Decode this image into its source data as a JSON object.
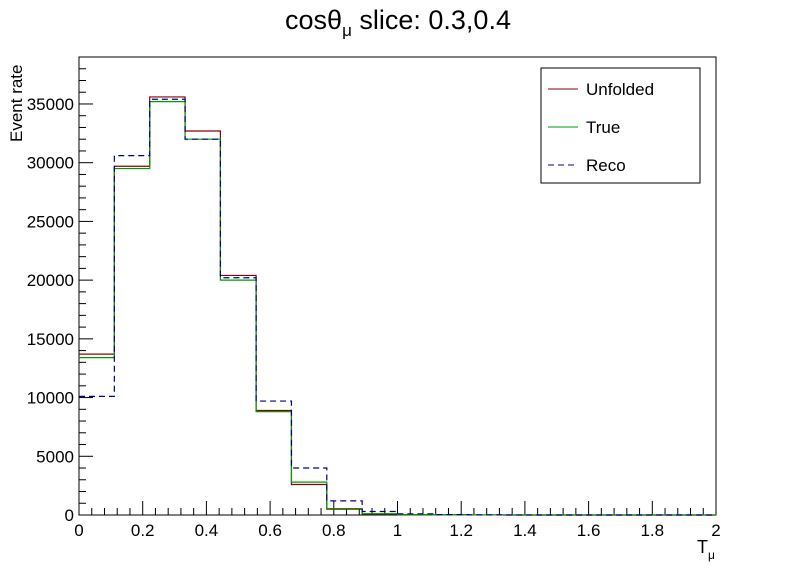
{
  "chart_data": {
    "type": "histogram",
    "title": {
      "prefix": "cosθ",
      "sub": "μ",
      "suffix": " slice: 0.3,0.4"
    },
    "xlabel": {
      "main": "T",
      "sub": "μ"
    },
    "ylabel": "Event rate",
    "xlim": [
      0,
      2
    ],
    "ylim": [
      0,
      39000
    ],
    "x_ticks": [
      "0",
      "0.2",
      "0.4",
      "0.6",
      "0.8",
      "1",
      "1.2",
      "1.4",
      "1.6",
      "1.8",
      "2"
    ],
    "x_tick_values": [
      0,
      0.2,
      0.4,
      0.6,
      0.8,
      1,
      1.2,
      1.4,
      1.6,
      1.8,
      2
    ],
    "y_ticks": [
      "0",
      "5000",
      "10000",
      "15000",
      "20000",
      "25000",
      "30000",
      "35000"
    ],
    "y_tick_values": [
      0,
      5000,
      10000,
      15000,
      20000,
      25000,
      30000,
      35000
    ],
    "bin_edges": [
      0,
      0.111,
      0.222,
      0.333,
      0.444,
      0.556,
      0.667,
      0.778,
      0.889,
      1.0,
      1.111,
      1.222,
      1.333,
      1.444,
      1.556,
      1.667,
      1.778,
      1.889,
      2.0
    ],
    "legend": {
      "position": "top-right"
    },
    "series": [
      {
        "name": "Unfolded",
        "color": "#8b0000",
        "style": "solid",
        "values": [
          13700,
          29700,
          35600,
          32700,
          20400,
          8900,
          2600,
          500,
          100,
          30,
          10,
          5,
          2,
          1,
          0,
          0,
          0,
          0
        ]
      },
      {
        "name": "True",
        "color": "#009900",
        "style": "solid",
        "values": [
          13400,
          29500,
          35200,
          32000,
          20000,
          8800,
          2800,
          550,
          100,
          30,
          10,
          5,
          2,
          1,
          0,
          0,
          0,
          0
        ]
      },
      {
        "name": "Reco",
        "color": "#00008b",
        "style": "dashed",
        "values": [
          10100,
          30600,
          35400,
          32000,
          20200,
          9700,
          4000,
          1200,
          300,
          100,
          30,
          10,
          5,
          2,
          1,
          0,
          0,
          0
        ]
      }
    ]
  }
}
